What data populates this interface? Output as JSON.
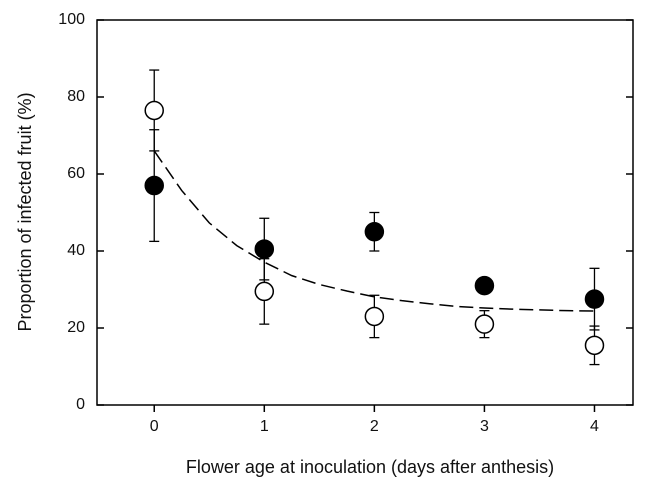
{
  "chart_data": {
    "type": "scatter",
    "x_label": "Flower age at inoculation (days after anthesis)",
    "y_label": "Proportion of infected fruit (%)",
    "xlim": [
      -0.52,
      4.35
    ],
    "ylim": [
      0,
      100
    ],
    "xticks": [
      0,
      1,
      2,
      3,
      4
    ],
    "yticks": [
      0,
      20,
      40,
      60,
      80,
      100
    ],
    "series": [
      {
        "marker": "filled",
        "color": "#000000",
        "x": [
          0,
          1,
          2,
          3,
          4
        ],
        "values": [
          57,
          40.5,
          45,
          31,
          27.5
        ],
        "errors": [
          14.5,
          8,
          5,
          1,
          8
        ]
      },
      {
        "marker": "open",
        "color": "#000000",
        "x": [
          0,
          1,
          2,
          3,
          4
        ],
        "values": [
          76.5,
          29.5,
          23,
          21,
          15.5
        ],
        "errors": [
          10.5,
          8.5,
          5.5,
          3.5,
          5
        ]
      },
      {
        "marker": "dashed-line",
        "color": "#000000",
        "x": [
          0,
          0.25,
          0.5,
          0.75,
          1,
          1.25,
          1.5,
          1.75,
          2,
          2.25,
          2.5,
          2.75,
          3,
          3.25,
          3.5,
          3.75,
          4
        ],
        "values": [
          66,
          55.7,
          47.3,
          41.4,
          37.1,
          33.6,
          31.3,
          29.6,
          28.1,
          27.1,
          26.3,
          25.6,
          25.2,
          24.9,
          24.7,
          24.5,
          24.4
        ]
      }
    ]
  }
}
